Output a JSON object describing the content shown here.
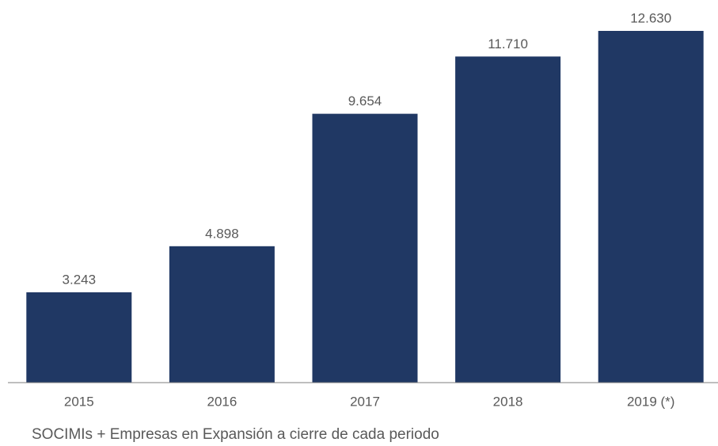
{
  "chart_data": {
    "type": "bar",
    "categories": [
      "2015",
      "2016",
      "2017",
      "2018",
      "2019 (*)"
    ],
    "values": [
      3243,
      4898,
      9654,
      11710,
      12630
    ],
    "value_labels": [
      "3.243",
      "4.898",
      "9.654",
      "11.710",
      "12.630"
    ],
    "color": "#203864",
    "caption": "SOCIMIs + Empresas en Expansión a cierre de cada periodo"
  }
}
